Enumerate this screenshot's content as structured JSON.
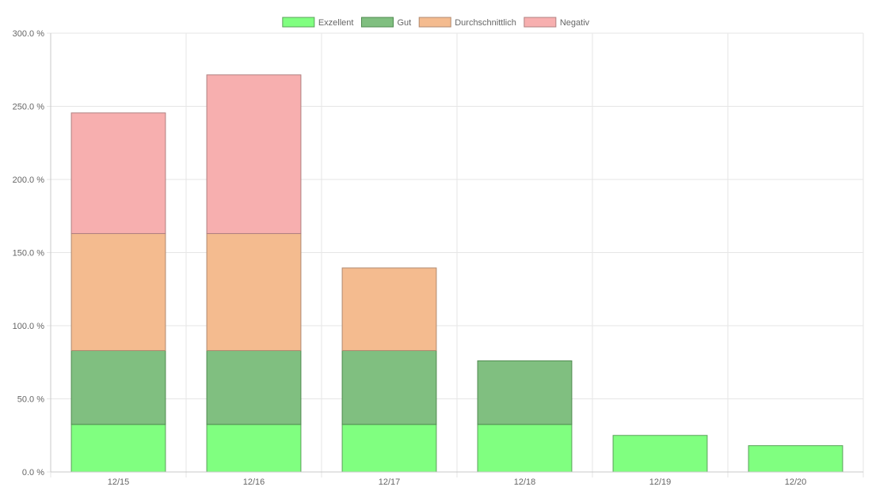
{
  "chart_data": {
    "type": "bar",
    "stacked": true,
    "categories": [
      "12/15",
      "12/16",
      "12/17",
      "12/18",
      "12/19",
      "12/20"
    ],
    "series": [
      {
        "name": "Exzellent",
        "values": [
          32.5,
          32.5,
          32.5,
          32.5,
          25.0,
          18.0
        ],
        "color": "#80ff80",
        "border": "#5aa05a"
      },
      {
        "name": "Gut",
        "values": [
          50.5,
          50.5,
          50.5,
          43.5,
          0,
          0
        ],
        "color": "#80bf80",
        "border": "#4f8a4f"
      },
      {
        "name": "Durchschnittlich",
        "values": [
          80.0,
          80.0,
          56.5,
          0,
          0,
          0
        ],
        "color": "#f4bb8f",
        "border": "#b08a70"
      },
      {
        "name": "Negativ",
        "values": [
          82.5,
          108.5,
          0,
          0,
          0,
          0
        ],
        "color": "#f7afaf",
        "border": "#b08080"
      }
    ],
    "y_ticks": [
      "0.0 %",
      "50.0 %",
      "100.0 %",
      "150.0 %",
      "200.0 %",
      "250.0 %",
      "300.0 %"
    ],
    "ylim": [
      0,
      300
    ],
    "grid": true,
    "legend_position": "top"
  }
}
